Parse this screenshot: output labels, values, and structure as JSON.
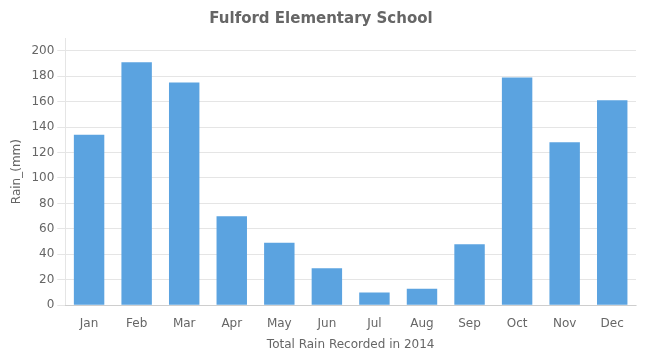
{
  "chart_data": {
    "type": "bar",
    "title": "Fulford Elementary School",
    "x_label": "Total Rain Recorded in 2014",
    "y_label": "Rain_(mm)",
    "categories": [
      "Jan",
      "Feb",
      "Mar",
      "Apr",
      "May",
      "Jun",
      "Jul",
      "Aug",
      "Sep",
      "Oct",
      "Nov",
      "Dec"
    ],
    "values": [
      134,
      191,
      175,
      70,
      49,
      29,
      10,
      13,
      48,
      179,
      128,
      161
    ],
    "color": "#5ba3e0",
    "ylim": [
      0,
      210
    ],
    "yticks": [
      0,
      20,
      40,
      60,
      80,
      100,
      120,
      140,
      160,
      180,
      200
    ],
    "grid": true
  }
}
